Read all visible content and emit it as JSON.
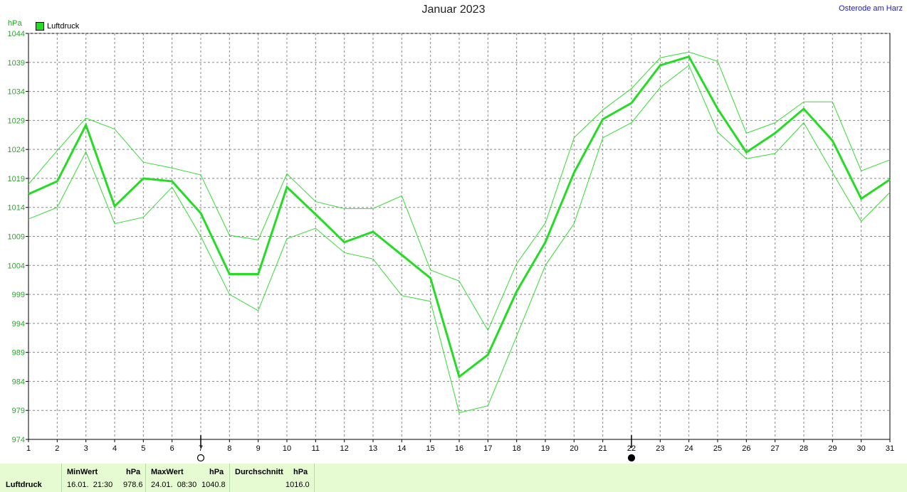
{
  "header": {
    "title": "Januar 2023",
    "location": "Osterode am Harz",
    "unit": "hPa",
    "legend_label": "Luftdruck"
  },
  "colors": {
    "series": "#22dd22",
    "band": "#33dd33",
    "grid": "#888888",
    "stats_bg": "#e6fbd2"
  },
  "markers": [
    {
      "day": 7,
      "style": "open-circle"
    },
    {
      "day": 22,
      "style": "filled-circle"
    }
  ],
  "stats": {
    "row_label": "Luftdruck",
    "min": {
      "header": "MinWert",
      "unit": "hPa",
      "datetime": "16.01.  21:30",
      "value": "978.6"
    },
    "max": {
      "header": "MaxWert",
      "unit": "hPa",
      "datetime": "24.01.  08:30",
      "value": "1040.8"
    },
    "avg": {
      "header": "Durchschnitt",
      "unit": "hPa",
      "value": "1016.0"
    }
  },
  "chart_data": {
    "type": "line",
    "title": "Januar 2023",
    "ylabel": "hPa",
    "ylim": [
      974,
      1044
    ],
    "yticks": [
      974,
      979,
      984,
      989,
      994,
      999,
      1004,
      1009,
      1014,
      1019,
      1024,
      1029,
      1034,
      1039,
      1044
    ],
    "x": [
      1,
      2,
      3,
      4,
      5,
      6,
      7,
      8,
      9,
      10,
      11,
      12,
      13,
      14,
      15,
      16,
      17,
      18,
      19,
      20,
      21,
      22,
      23,
      24,
      25,
      26,
      27,
      28,
      29,
      30,
      31
    ],
    "xlim": [
      1,
      31
    ],
    "grid": true,
    "legend_position": "top-left",
    "series": [
      {
        "name": "Luftdruck",
        "role": "mean",
        "values": [
          1016.3,
          1018.5,
          1028.2,
          1014.2,
          1019.0,
          1018.5,
          1013.0,
          1002.5,
          1002.5,
          1017.5,
          1012.8,
          1008.0,
          1009.8,
          1005.8,
          1001.8,
          984.8,
          988.6,
          999.5,
          1008.0,
          1020.0,
          1029.2,
          1032.0,
          1038.5,
          1040.0,
          1031.0,
          1023.5,
          1026.8,
          1031.0,
          1025.5,
          1015.5,
          1018.8
        ]
      },
      {
        "role": "max",
        "values": [
          1018.0,
          1023.8,
          1029.4,
          1027.5,
          1021.8,
          1020.8,
          1019.6,
          1009.2,
          1008.4,
          1019.8,
          1015.0,
          1013.8,
          1013.8,
          1016.0,
          1003.2,
          1001.3,
          992.8,
          1004.3,
          1011.3,
          1026.0,
          1030.8,
          1034.5,
          1039.8,
          1040.8,
          1039.2,
          1026.8,
          1028.6,
          1032.2,
          1032.2,
          1020.3,
          1022.2
        ]
      },
      {
        "role": "min",
        "values": [
          1012.0,
          1014.0,
          1023.6,
          1011.2,
          1012.3,
          1017.5,
          1009.0,
          999.0,
          996.2,
          1008.6,
          1010.4,
          1006.2,
          1005.1,
          998.8,
          997.8,
          978.6,
          979.8,
          991.8,
          1004.0,
          1011.2,
          1026.0,
          1028.6,
          1034.7,
          1038.5,
          1027.0,
          1022.4,
          1023.3,
          1028.6,
          1020.0,
          1011.6,
          1016.6
        ]
      }
    ]
  }
}
